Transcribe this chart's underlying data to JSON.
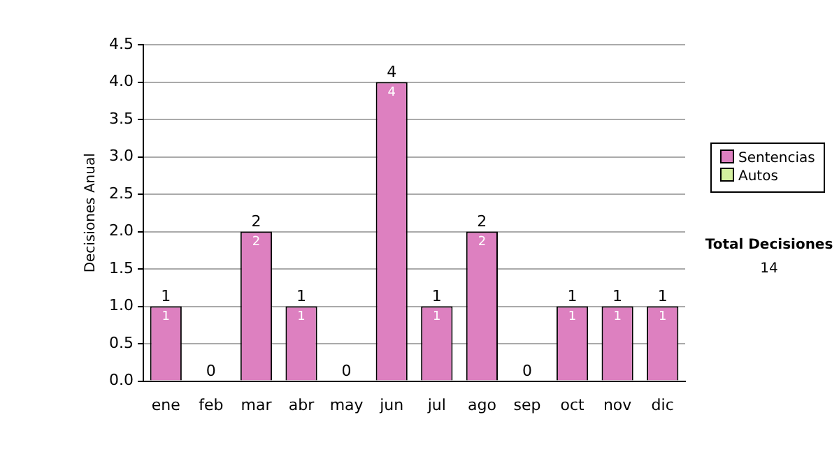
{
  "chart_data": {
    "type": "bar",
    "ylabel": "Decisiones Anual",
    "categories": [
      "ene",
      "feb",
      "mar",
      "abr",
      "may",
      "jun",
      "jul",
      "ago",
      "sep",
      "oct",
      "nov",
      "dic"
    ],
    "series": [
      {
        "name": "Sentencias",
        "color": "#dd80c0",
        "values": [
          1,
          0,
          2,
          1,
          0,
          4,
          1,
          2,
          0,
          1,
          1,
          1
        ],
        "value_labels": [
          "1",
          null,
          "2",
          "1",
          null,
          "4",
          "1",
          "2",
          null,
          "1",
          "1",
          "1"
        ]
      },
      {
        "name": "Autos",
        "color": "#d4f0a0",
        "values": [
          0,
          0,
          0,
          0,
          0,
          0,
          0,
          0,
          0,
          0,
          0,
          0
        ]
      }
    ],
    "stacked": true,
    "totals": [
      "1",
      "0",
      "2",
      "1",
      "0",
      "4",
      "1",
      "2",
      "0",
      "1",
      "1",
      "1"
    ],
    "ylim": [
      0,
      4.5
    ],
    "yticks": [
      {
        "value": 0,
        "label": "0.0"
      },
      0.5,
      {
        "value": 1,
        "label": "1.0"
      },
      1.5,
      {
        "value": 2,
        "label": "2.0"
      },
      2.5,
      {
        "value": 3,
        "label": "3.0"
      },
      3.5,
      {
        "value": 4,
        "label": "4.0"
      },
      4.5
    ],
    "grid": "y",
    "legend": "right",
    "annotations": [
      "Total Decisiones",
      "14"
    ]
  }
}
